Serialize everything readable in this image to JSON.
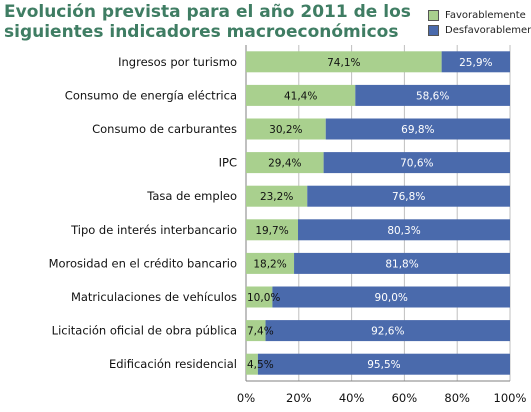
{
  "title": "Evolución prevista para el año 2011 de los siguientes indicadores macroeconómicos",
  "colors": {
    "favorable": "#a9d08e",
    "desfavorable": "#4a6aac",
    "title": "#3f7d63",
    "grid": "#bfbfbf"
  },
  "legend": [
    {
      "name": "Favorablemente",
      "color": "#a9d08e"
    },
    {
      "name": "Desfavorablemente",
      "color": "#4a6aac"
    }
  ],
  "chart_data": {
    "type": "bar",
    "orientation": "horizontal",
    "stacked": true,
    "title": "Evolución prevista para el año 2011 de los siguientes indicadores macroeconómicos",
    "categories": [
      "Ingresos por turismo",
      "Consumo de energía eléctrica",
      "Consumo de carburantes",
      "IPC",
      "Tasa de empleo",
      "Tipo de interés interbancario",
      "Morosidad en el crédito bancario",
      "Matriculaciones de vehículos",
      "Licitación oficial de obra pública",
      "Edificación residencial"
    ],
    "series": [
      {
        "name": "Favorablemente",
        "values": [
          74.1,
          41.4,
          30.2,
          29.4,
          23.2,
          19.7,
          18.2,
          10.0,
          7.4,
          4.5
        ],
        "labels": [
          "74,1%",
          "41,4%",
          "30,2%",
          "29,4%",
          "23,2%",
          "19,7%",
          "18,2%",
          "10,0%",
          "7,4%",
          "4,5%"
        ]
      },
      {
        "name": "Desfavorablemente",
        "values": [
          25.9,
          58.6,
          69.8,
          70.6,
          76.8,
          80.3,
          81.8,
          90.0,
          92.6,
          95.5
        ],
        "labels": [
          "25,9%",
          "58,6%",
          "69,8%",
          "70,6%",
          "76,8%",
          "80,3%",
          "81,8%",
          "90,0%",
          "92,6%",
          "95,5%"
        ]
      }
    ],
    "xlim": [
      0,
      100
    ],
    "xticks": [
      0,
      20,
      40,
      60,
      80,
      100
    ],
    "xtick_labels": [
      "0%",
      "20%",
      "40%",
      "60%",
      "80%",
      "100%"
    ],
    "grid": true,
    "legend_position": "top-right"
  }
}
